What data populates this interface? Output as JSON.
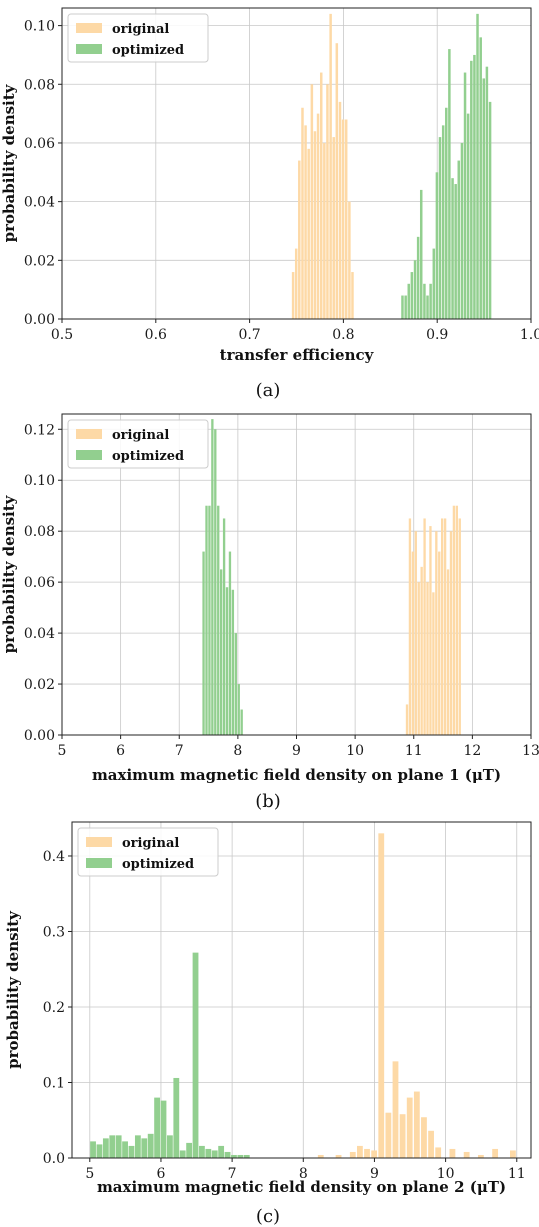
{
  "colors": {
    "original": "#fdd9a6",
    "optimized": "#92cf8f"
  },
  "chart_data": [
    {
      "type": "bar",
      "caption": "(a)",
      "xlabel": "transfer efficiency",
      "ylabel": "probability density",
      "xlim": [
        0.5,
        1.0
      ],
      "ylim": [
        0,
        0.106
      ],
      "xticks": [
        "0.5",
        "0.6",
        "0.7",
        "0.8",
        "0.9",
        "1.0"
      ],
      "yticks": [
        "0.00",
        "0.02",
        "0.04",
        "0.06",
        "0.08",
        "0.10"
      ],
      "grid": true,
      "legend_position": "top-left",
      "bin_width": 0.0033,
      "series": [
        {
          "name": "original",
          "color_key": "original",
          "x": [
            0.7467,
            0.75,
            0.7533,
            0.7567,
            0.76,
            0.7633,
            0.7667,
            0.77,
            0.7733,
            0.7767,
            0.78,
            0.7833,
            0.7867,
            0.79,
            0.7933,
            0.7967,
            0.8,
            0.8033,
            0.8067,
            0.81
          ],
          "values": [
            0.016,
            0.024,
            0.054,
            0.072,
            0.066,
            0.058,
            0.08,
            0.064,
            0.07,
            0.084,
            0.06,
            0.08,
            0.104,
            0.062,
            0.094,
            0.074,
            0.068,
            0.068,
            0.04,
            0.016
          ]
        },
        {
          "name": "optimized",
          "color_key": "optimized",
          "x": [
            0.8633,
            0.8667,
            0.87,
            0.8733,
            0.8767,
            0.88,
            0.8833,
            0.8867,
            0.89,
            0.8933,
            0.8967,
            0.9,
            0.9033,
            0.9067,
            0.91,
            0.9133,
            0.9167,
            0.92,
            0.9233,
            0.9267,
            0.93,
            0.9333,
            0.9367,
            0.94,
            0.9433,
            0.9467,
            0.95,
            0.9533,
            0.9567
          ],
          "values": [
            0.008,
            0.008,
            0.012,
            0.016,
            0.02,
            0.028,
            0.044,
            0.012,
            0.008,
            0.012,
            0.024,
            0.05,
            0.062,
            0.066,
            0.072,
            0.092,
            0.048,
            0.046,
            0.054,
            0.06,
            0.084,
            0.07,
            0.088,
            0.09,
            0.104,
            0.096,
            0.082,
            0.086,
            0.074
          ]
        }
      ]
    },
    {
      "type": "bar",
      "caption": "(b)",
      "xlabel": "maximum magnetic field density on plane 1 (μT)",
      "ylabel": "probability density",
      "xlim": [
        5,
        13
      ],
      "ylim": [
        0,
        0.126
      ],
      "xticks": [
        "5",
        "6",
        "7",
        "8",
        "9",
        "10",
        "11",
        "12",
        "13"
      ],
      "yticks": [
        "0.00",
        "0.02",
        "0.04",
        "0.06",
        "0.08",
        "0.10",
        "0.12"
      ],
      "grid": true,
      "legend_position": "top-left",
      "bin_width": 0.05,
      "series": [
        {
          "name": "original",
          "color_key": "original",
          "x": [
            10.89,
            10.94,
            10.99,
            11.04,
            11.09,
            11.14,
            11.19,
            11.24,
            11.29,
            11.34,
            11.39,
            11.44,
            11.49,
            11.54,
            11.59,
            11.64,
            11.69,
            11.74,
            11.79
          ],
          "values": [
            0.012,
            0.085,
            0.072,
            0.08,
            0.06,
            0.066,
            0.085,
            0.06,
            0.082,
            0.056,
            0.08,
            0.072,
            0.085,
            0.085,
            0.065,
            0.08,
            0.09,
            0.09,
            0.085
          ]
        },
        {
          "name": "optimized",
          "color_key": "optimized",
          "x": [
            7.42,
            7.47,
            7.52,
            7.57,
            7.62,
            7.67,
            7.72,
            7.77,
            7.82,
            7.87,
            7.92,
            7.97,
            8.02,
            8.07
          ],
          "values": [
            0.072,
            0.09,
            0.09,
            0.124,
            0.12,
            0.09,
            0.065,
            0.085,
            0.058,
            0.072,
            0.057,
            0.04,
            0.02,
            0.01
          ]
        }
      ]
    },
    {
      "type": "bar",
      "caption": "(c)",
      "xlabel": "maximum magnetic field density on plane 2 (μT)",
      "ylabel": "probability density",
      "xlim": [
        4.75,
        11.2
      ],
      "ylim": [
        0,
        0.445
      ],
      "xticks": [
        "5",
        "6",
        "7",
        "8",
        "9",
        "10",
        "11"
      ],
      "yticks": [
        "0.0",
        "0.1",
        "0.2",
        "0.3",
        "0.4"
      ],
      "grid": true,
      "legend_position": "top-left",
      "bin_width": 0.09,
      "series": [
        {
          "name": "original",
          "color_key": "original",
          "x": [
            8.25,
            8.5,
            8.7,
            8.8,
            8.9,
            9.0,
            9.1,
            9.2,
            9.3,
            9.4,
            9.5,
            9.6,
            9.7,
            9.8,
            9.9,
            10.1,
            10.3,
            10.5,
            10.7,
            10.95
          ],
          "values": [
            0.004,
            0.004,
            0.008,
            0.016,
            0.012,
            0.01,
            0.43,
            0.06,
            0.128,
            0.058,
            0.08,
            0.088,
            0.054,
            0.036,
            0.014,
            0.012,
            0.008,
            0.004,
            0.012,
            0.01
          ]
        },
        {
          "name": "optimized",
          "color_key": "optimized",
          "x": [
            5.05,
            5.14,
            5.23,
            5.32,
            5.41,
            5.5,
            5.59,
            5.68,
            5.77,
            5.86,
            5.95,
            6.04,
            6.13,
            6.22,
            6.31,
            6.4,
            6.49,
            6.58,
            6.67,
            6.76,
            6.85,
            6.94,
            7.03,
            7.12,
            7.21
          ],
          "values": [
            0.022,
            0.018,
            0.026,
            0.03,
            0.03,
            0.022,
            0.016,
            0.03,
            0.026,
            0.032,
            0.08,
            0.076,
            0.03,
            0.106,
            0.01,
            0.02,
            0.272,
            0.016,
            0.012,
            0.01,
            0.016,
            0.008,
            0.004,
            0.004,
            0.004
          ]
        }
      ]
    }
  ]
}
